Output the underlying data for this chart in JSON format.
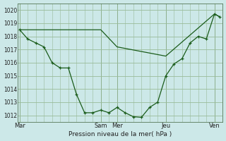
{
  "bg_color": "#cce8e8",
  "grid_color": "#99bb99",
  "line_color": "#1a5c1a",
  "xlabel": "Pression niveau de la mer( hPa )",
  "ylim": [
    1011.5,
    1020.5
  ],
  "yticks": [
    1012,
    1013,
    1014,
    1015,
    1016,
    1017,
    1018,
    1019,
    1020
  ],
  "day_labels": [
    "Mar",
    "Sam",
    "Mer",
    "Jeu",
    "Ven"
  ],
  "day_positions": [
    0,
    5,
    6,
    9,
    12
  ],
  "line1_x": [
    0,
    0.5,
    1.0,
    1.5,
    2.0,
    2.5,
    3.0,
    3.5,
    4.0,
    4.5,
    5.0,
    5.5,
    6.0,
    6.5,
    7.0,
    7.5,
    8.0,
    8.5,
    9.0,
    9.5,
    10.0,
    10.5,
    11.0,
    11.5,
    12.0,
    12.3
  ],
  "line1_y": [
    1018.5,
    1017.8,
    1017.5,
    1017.2,
    1016.0,
    1015.6,
    1015.6,
    1013.6,
    1012.2,
    1012.2,
    1012.4,
    1012.2,
    1012.6,
    1012.2,
    1011.9,
    1011.85,
    1012.6,
    1013.0,
    1015.0,
    1015.9,
    1016.3,
    1017.5,
    1018.0,
    1017.8,
    1019.7,
    1019.5
  ],
  "line2_x": [
    0,
    5,
    6,
    9,
    12,
    12.3
  ],
  "line2_y": [
    1018.5,
    1018.5,
    1017.2,
    1016.5,
    1019.7,
    1019.5
  ]
}
